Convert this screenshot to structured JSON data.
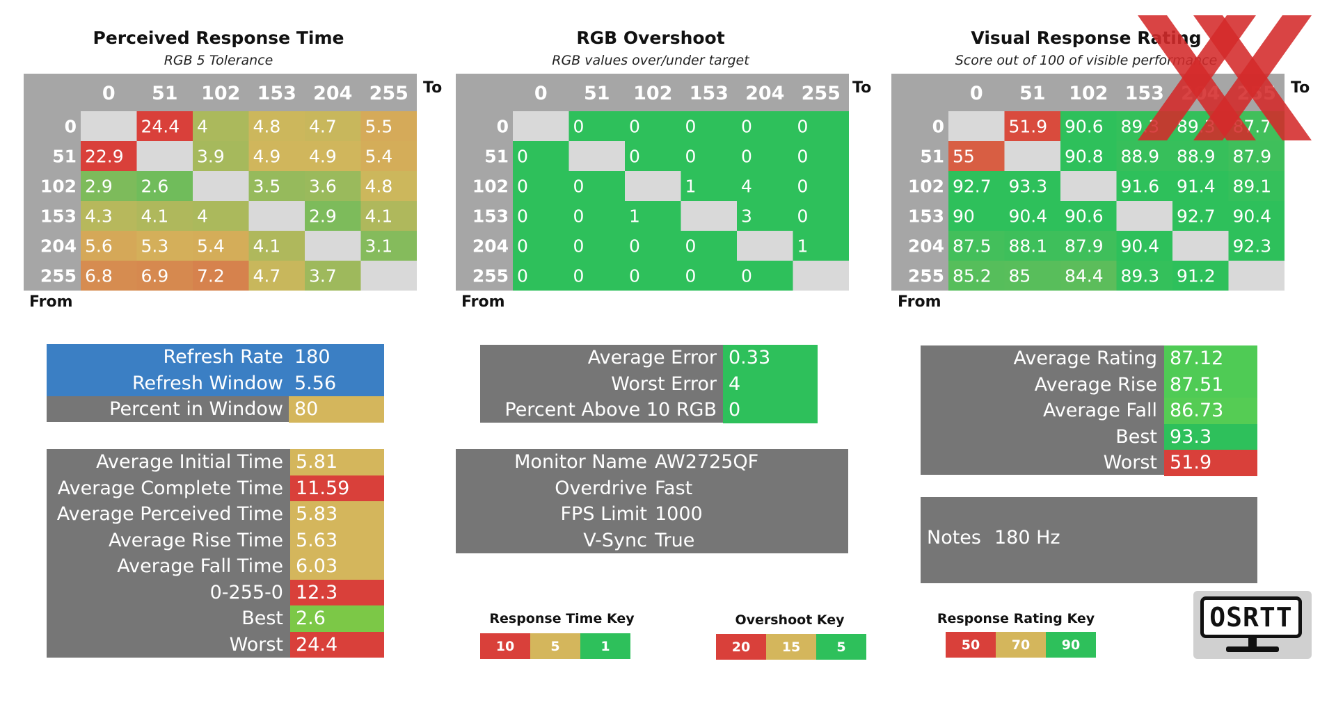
{
  "colors": {
    "red": "#d9403a",
    "yellow": "#d4b65c",
    "green": "#2ec05b",
    "grey": "#767676",
    "blue": "#3b7fc4",
    "header_grey": "#a6a6a6",
    "diag": "#d9d9d9"
  },
  "axis_levels": [
    "0",
    "51",
    "102",
    "153",
    "204",
    "255"
  ],
  "panels": {
    "response": {
      "title": "Perceived Response Time",
      "subtitle": "RGB 5 Tolerance",
      "to": "To",
      "from": "From"
    },
    "overshoot": {
      "title": "RGB Overshoot",
      "subtitle": "RGB values over/under target",
      "to": "To",
      "from": "From"
    },
    "rating": {
      "title": "Visual Response Rating",
      "subtitle": "Score out of 100 of visible performance",
      "to": "To",
      "from": "From"
    }
  },
  "chart_data": [
    {
      "type": "heatmap",
      "title": "Perceived Response Time",
      "subtitle": "RGB 5 Tolerance",
      "xlabel": "To",
      "ylabel": "From",
      "x": [
        "0",
        "51",
        "102",
        "153",
        "204",
        "255"
      ],
      "y": [
        "0",
        "51",
        "102",
        "153",
        "204",
        "255"
      ],
      "scale": [
        {
          "value": 10,
          "color": "#d9403a"
        },
        {
          "value": 5,
          "color": "#d4b65c"
        },
        {
          "value": 1,
          "color": "#2ec05b"
        }
      ],
      "values": [
        [
          null,
          24.4,
          4,
          4.8,
          4.7,
          5.5
        ],
        [
          22.9,
          null,
          3.9,
          4.9,
          4.9,
          5.4
        ],
        [
          2.9,
          2.6,
          null,
          3.5,
          3.6,
          4.8
        ],
        [
          4.3,
          4.1,
          4,
          null,
          2.9,
          4.1
        ],
        [
          5.6,
          5.3,
          5.4,
          4.1,
          null,
          3.1
        ],
        [
          6.8,
          6.9,
          7.2,
          4.7,
          3.7,
          null
        ]
      ]
    },
    {
      "type": "heatmap",
      "title": "RGB Overshoot",
      "subtitle": "RGB values over/under target",
      "xlabel": "To",
      "ylabel": "From",
      "x": [
        "0",
        "51",
        "102",
        "153",
        "204",
        "255"
      ],
      "y": [
        "0",
        "51",
        "102",
        "153",
        "204",
        "255"
      ],
      "scale": [
        {
          "value": 20,
          "color": "#d9403a"
        },
        {
          "value": 15,
          "color": "#d4b65c"
        },
        {
          "value": 5,
          "color": "#2ec05b"
        }
      ],
      "values": [
        [
          null,
          0,
          0,
          0,
          0,
          0
        ],
        [
          0,
          null,
          0,
          0,
          0,
          0
        ],
        [
          0,
          0,
          null,
          1,
          4,
          0
        ],
        [
          0,
          0,
          1,
          null,
          3,
          0
        ],
        [
          0,
          0,
          0,
          0,
          null,
          1
        ],
        [
          0,
          0,
          0,
          0,
          0,
          null
        ]
      ]
    },
    {
      "type": "heatmap",
      "title": "Visual Response Rating",
      "subtitle": "Score out of 100 of visible performance",
      "xlabel": "To",
      "ylabel": "From",
      "x": [
        "0",
        "51",
        "102",
        "153",
        "204",
        "255"
      ],
      "y": [
        "0",
        "51",
        "102",
        "153",
        "204",
        "255"
      ],
      "scale": [
        {
          "value": 50,
          "color": "#d9403a"
        },
        {
          "value": 70,
          "color": "#d4b65c"
        },
        {
          "value": 90,
          "color": "#2ec05b"
        }
      ],
      "values": [
        [
          null,
          51.9,
          90.6,
          89.3,
          89.3,
          87.7
        ],
        [
          55,
          null,
          90.8,
          88.9,
          88.9,
          87.9
        ],
        [
          92.7,
          93.3,
          null,
          91.6,
          91.4,
          89.1
        ],
        [
          90,
          90.4,
          90.6,
          null,
          92.7,
          90.4
        ],
        [
          87.5,
          88.1,
          87.9,
          90.4,
          null,
          92.3
        ],
        [
          85.2,
          85,
          84.4,
          89.3,
          91.2,
          null
        ]
      ]
    }
  ],
  "refresh": [
    {
      "label": "Refresh Rate",
      "value": "180"
    },
    {
      "label": "Refresh Window",
      "value": "5.56"
    },
    {
      "label": "Percent in Window",
      "value": "80"
    }
  ],
  "times": [
    {
      "label": "Average Initial Time",
      "value": "5.81"
    },
    {
      "label": "Average Complete Time",
      "value": "11.59"
    },
    {
      "label": "Average Perceived Time",
      "value": "5.83"
    },
    {
      "label": "Average Rise Time",
      "value": "5.63"
    },
    {
      "label": "Average Fall Time",
      "value": "6.03"
    },
    {
      "label": "0-255-0",
      "value": "12.3"
    },
    {
      "label": "Best",
      "value": "2.6"
    },
    {
      "label": "Worst",
      "value": "24.4"
    }
  ],
  "errors": [
    {
      "label": "Average Error",
      "value": "0.33"
    },
    {
      "label": "Worst Error",
      "value": "4"
    },
    {
      "label": "Percent Above 10 RGB",
      "value": "0"
    }
  ],
  "monitor": [
    {
      "label": "Monitor Name",
      "value": "AW2725QF"
    },
    {
      "label": "Overdrive",
      "value": "Fast"
    },
    {
      "label": "FPS Limit",
      "value": "1000"
    },
    {
      "label": "V-Sync",
      "value": "True"
    }
  ],
  "ratings": [
    {
      "label": "Average Rating",
      "value": "87.12"
    },
    {
      "label": "Average Rise",
      "value": "87.51"
    },
    {
      "label": "Average Fall",
      "value": "86.73"
    },
    {
      "label": "Best",
      "value": "93.3"
    },
    {
      "label": "Worst",
      "value": "51.9"
    }
  ],
  "notes": {
    "label": "Notes",
    "value": "180 Hz"
  },
  "keys": {
    "response": {
      "title": "Response Time Key",
      "items": [
        "10",
        "5",
        "1"
      ]
    },
    "overshoot": {
      "title": "Overshoot Key",
      "items": [
        "20",
        "15",
        "5"
      ]
    },
    "rating": {
      "title": "Response Rating Key",
      "items": [
        "50",
        "70",
        "90"
      ]
    }
  },
  "logo": {
    "text": "OSRTT"
  }
}
